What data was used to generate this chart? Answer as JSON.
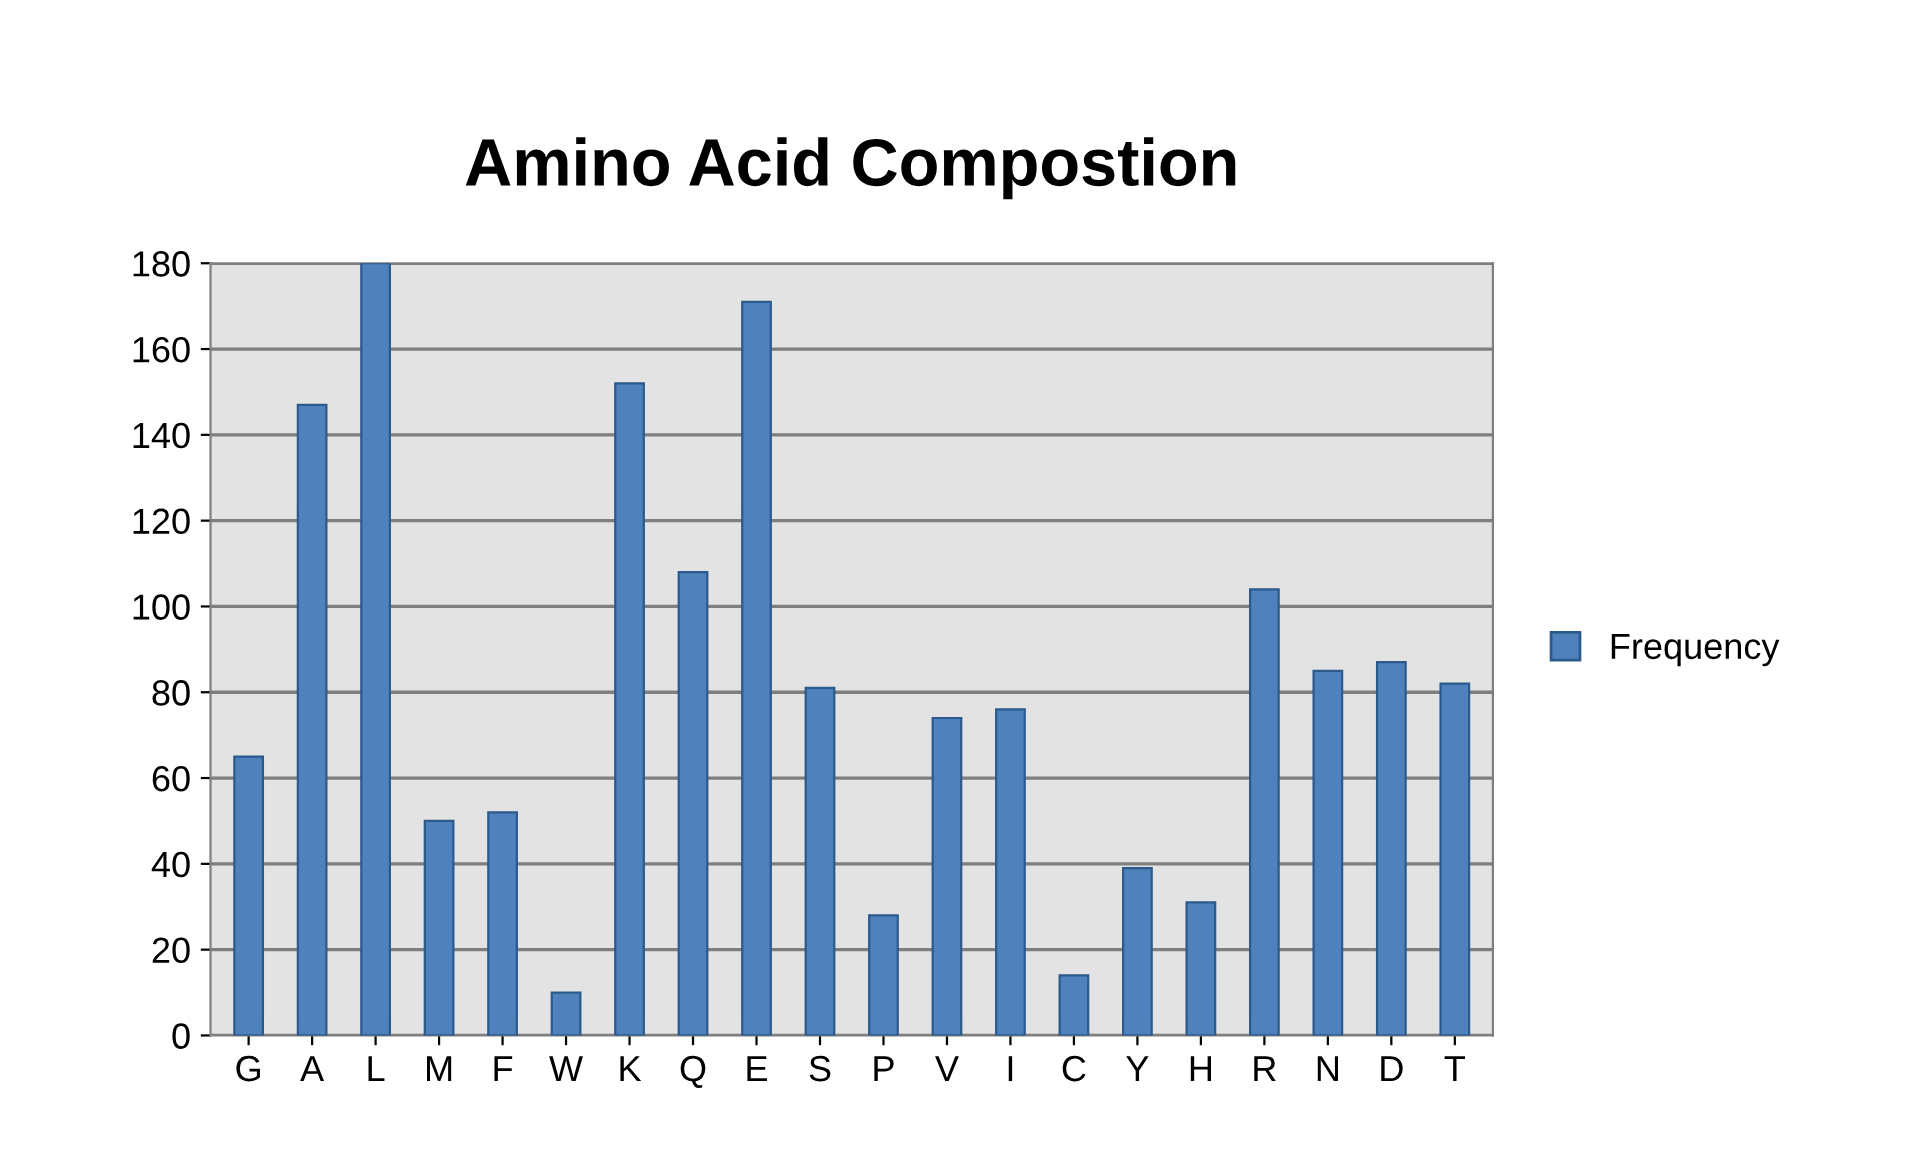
{
  "chart_data": {
    "type": "bar",
    "title": "Amino Acid Compostion",
    "categories": [
      "G",
      "A",
      "L",
      "M",
      "F",
      "W",
      "K",
      "Q",
      "E",
      "S",
      "P",
      "V",
      "I",
      "C",
      "Y",
      "H",
      "R",
      "N",
      "D",
      "T"
    ],
    "series": [
      {
        "name": "Frequency",
        "color": "#4f81bd",
        "values": [
          65,
          147,
          180,
          50,
          52,
          10,
          152,
          108,
          171,
          81,
          28,
          74,
          76,
          14,
          39,
          31,
          104,
          85,
          87,
          82
        ]
      }
    ],
    "ylim": [
      0,
      180
    ],
    "yticks": [
      0,
      20,
      40,
      60,
      80,
      100,
      120,
      140,
      160,
      180
    ],
    "grid": "y",
    "legend": "right"
  }
}
